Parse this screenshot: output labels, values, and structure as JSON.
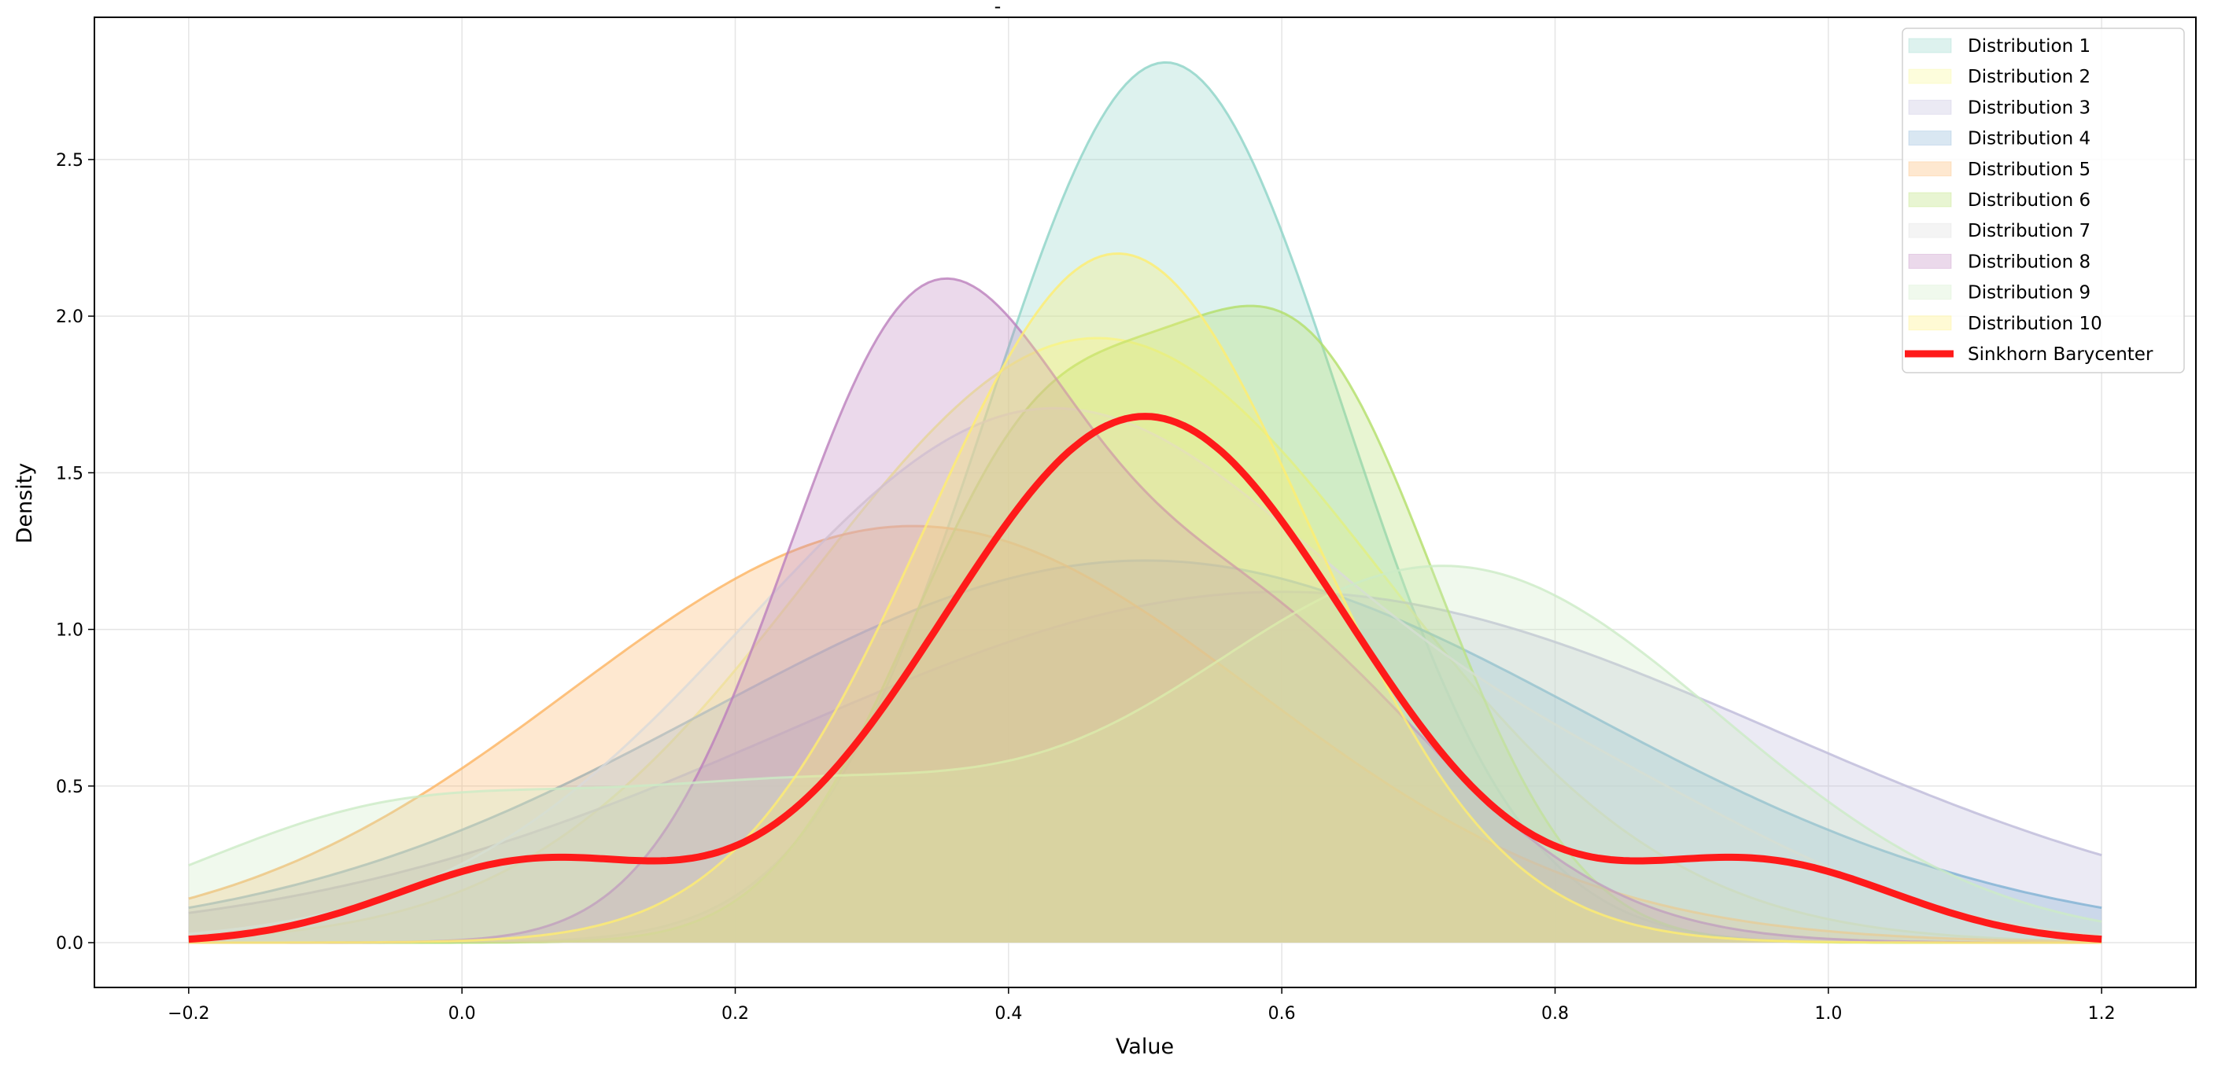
{
  "chart_data": {
    "type": "area",
    "title": "-",
    "xlabel": "Value",
    "ylabel": "Density",
    "xlim": [
      -0.269,
      1.269
    ],
    "ylim": [
      -0.143,
      2.954
    ],
    "x_range": [
      -0.2,
      1.2
    ],
    "xticks": [
      "-0.2",
      "0.0",
      "0.2",
      "0.4",
      "0.6",
      "0.8",
      "1.0",
      "1.2"
    ],
    "xtick_values": [
      -0.2,
      0.0,
      0.2,
      0.4,
      0.6,
      0.8,
      1.0,
      1.2
    ],
    "yticks": [
      "0.0",
      "0.5",
      "1.0",
      "1.5",
      "2.0",
      "2.5"
    ],
    "ytick_values": [
      0,
      0.5,
      1.0,
      1.5,
      2.0,
      2.5
    ],
    "grid": true,
    "legend_position": "top-right",
    "series": [
      {
        "name": "Distribution 1",
        "color": "#8dd3c7",
        "peak": [
          0.515,
          2.81
        ],
        "components": [
          {
            "mean": 0.515,
            "sd": 0.13,
            "peak": 2.81
          }
        ]
      },
      {
        "name": "Distribution 2",
        "color": "#f7f78a",
        "peak": [
          0.465,
          1.93
        ],
        "components": [
          {
            "mean": 0.465,
            "sd": 0.21,
            "peak": 1.93
          }
        ]
      },
      {
        "name": "Distribution 3",
        "color": "#bebada",
        "peak": [
          0.6,
          1.12
        ],
        "components": [
          {
            "mean": 0.6,
            "sd": 0.36,
            "peak": 1.12
          }
        ]
      },
      {
        "name": "Distribution 4",
        "color": "#80b1d3",
        "peak": [
          0.5,
          1.22
        ],
        "components": [
          {
            "mean": 0.5,
            "sd": 0.32,
            "peak": 1.22
          }
        ]
      },
      {
        "name": "Distribution 5",
        "color": "#fdb462",
        "peak": [
          0.3,
          1.33
        ],
        "components": [
          {
            "mean": 0.33,
            "sd": 0.25,
            "peak": 1.33
          }
        ]
      },
      {
        "name": "Distribution 6",
        "color": "#b3de69",
        "peak": [
          0.6,
          2.0
        ],
        "components": [
          {
            "mean": 0.42,
            "sd": 0.1,
            "peak": 1.5
          },
          {
            "mean": 0.62,
            "sd": 0.1,
            "peak": 1.75
          }
        ]
      },
      {
        "name": "Distribution 7",
        "color": "#d9d9d9",
        "peak": [
          0.43,
          1.72
        ],
        "components": [
          {
            "mean": 0.43,
            "sd": 0.22,
            "peak": 1.7
          },
          {
            "mean": 0.85,
            "sd": 0.15,
            "peak": 0.3
          }
        ]
      },
      {
        "name": "Distribution 8",
        "color": "#bc80bd",
        "peak": [
          0.34,
          2.09
        ],
        "components": [
          {
            "mean": 0.33,
            "sd": 0.1,
            "peak": 1.7
          },
          {
            "mean": 0.55,
            "sd": 0.15,
            "peak": 1.1
          }
        ]
      },
      {
        "name": "Distribution 9",
        "color": "#ccebc5",
        "peak": [
          0.7,
          1.25
        ],
        "components": [
          {
            "mean": -0.05,
            "sd": 0.15,
            "peak": 0.4
          },
          {
            "mean": 0.25,
            "sd": 0.15,
            "peak": 0.4
          },
          {
            "mean": 0.72,
            "sd": 0.2,
            "peak": 1.2
          }
        ]
      },
      {
        "name": "Distribution 10",
        "color": "#ffed6f",
        "peak": [
          0.48,
          2.2
        ],
        "components": [
          {
            "mean": 0.48,
            "sd": 0.14,
            "peak": 2.2
          }
        ]
      }
    ],
    "barycenter": {
      "name": "Sinkhorn Barycenter",
      "color": "#ff1a1a",
      "peak": [
        0.49,
        1.71
      ],
      "components": [
        {
          "mean": 0.5,
          "sd": 0.15,
          "peak": 1.68
        },
        {
          "mean": 0.05,
          "sd": 0.1,
          "peak": 0.25
        },
        {
          "mean": 0.95,
          "sd": 0.1,
          "peak": 0.25
        }
      ]
    }
  }
}
